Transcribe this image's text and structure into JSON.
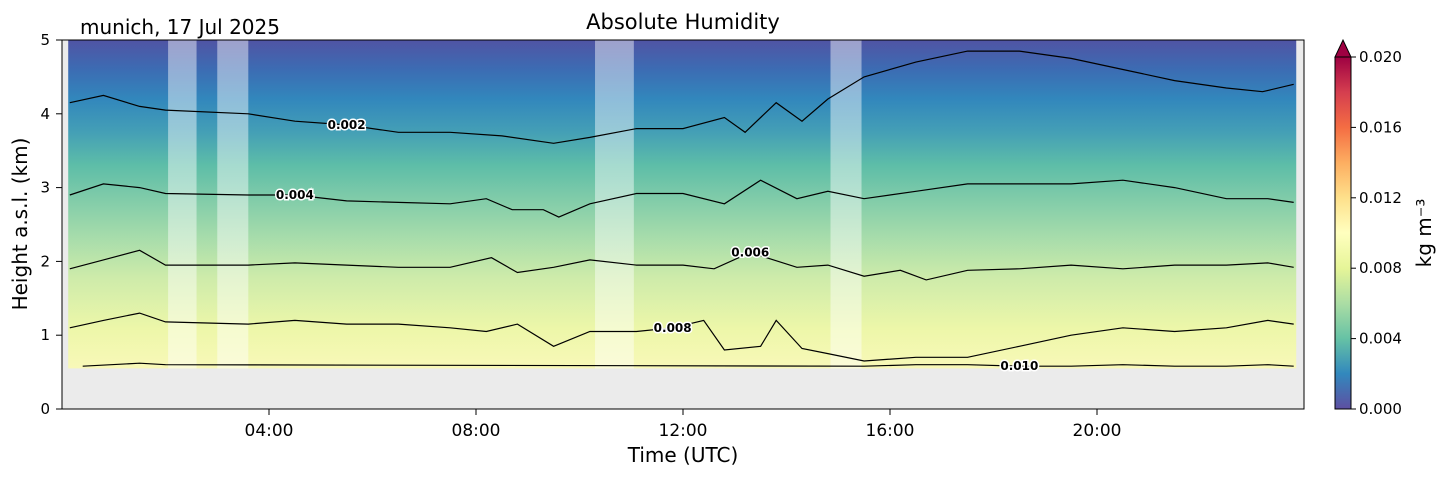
{
  "chart_data": {
    "type": "heatmap",
    "title": "Absolute Humidity",
    "subtitle": "munich, 17 Jul 2025",
    "xlabel": "Time (UTC)",
    "ylabel": "Height a.s.l. (km)",
    "xlim": [
      0,
      24
    ],
    "ylim": [
      0,
      5
    ],
    "x_ticks": [
      4,
      8,
      12,
      16,
      20
    ],
    "x_tick_labels": [
      "04:00",
      "08:00",
      "12:00",
      "16:00",
      "20:00"
    ],
    "y_ticks": [
      0,
      1,
      2,
      3,
      4,
      5
    ],
    "y_tick_labels": [
      "0",
      "1",
      "2",
      "3",
      "4",
      "5"
    ],
    "ground_height_km": 0.55,
    "data_start_hour": 0.12,
    "data_end_hour": 23.85,
    "gaps_hours": [
      [
        2.05,
        2.6
      ],
      [
        3.0,
        3.6
      ],
      [
        10.3,
        11.05
      ],
      [
        14.85,
        15.45
      ]
    ],
    "colorbar": {
      "label": "kg m⁻³",
      "min": 0.0,
      "max": 0.02,
      "ticks": [
        0.0,
        0.004,
        0.008,
        0.012,
        0.016,
        0.02
      ],
      "tick_labels": [
        "0.000",
        "0.004",
        "0.008",
        "0.012",
        "0.016",
        "0.020"
      ],
      "extend": "max",
      "colormap": "Spectral_r"
    },
    "contours": [
      {
        "level": 0.002,
        "label": "0.002",
        "label_hour": 5.8,
        "points": [
          [
            0.15,
            4.15
          ],
          [
            0.8,
            4.25
          ],
          [
            1.5,
            4.1
          ],
          [
            2.0,
            4.05
          ],
          [
            3.6,
            4.0
          ],
          [
            4.5,
            3.9
          ],
          [
            5.5,
            3.85
          ],
          [
            6.5,
            3.75
          ],
          [
            7.5,
            3.75
          ],
          [
            8.5,
            3.7
          ],
          [
            9.5,
            3.6
          ],
          [
            10.2,
            3.68
          ],
          [
            11.1,
            3.8
          ],
          [
            12.0,
            3.8
          ],
          [
            12.8,
            3.95
          ],
          [
            13.2,
            3.75
          ],
          [
            13.8,
            4.15
          ],
          [
            14.3,
            3.9
          ],
          [
            14.8,
            4.2
          ],
          [
            15.5,
            4.5
          ],
          [
            16.5,
            4.7
          ],
          [
            17.5,
            4.85
          ],
          [
            18.5,
            4.85
          ],
          [
            19.5,
            4.75
          ],
          [
            20.5,
            4.6
          ],
          [
            21.5,
            4.45
          ],
          [
            22.5,
            4.35
          ],
          [
            23.2,
            4.3
          ],
          [
            23.8,
            4.4
          ]
        ]
      },
      {
        "level": 0.004,
        "label": "0.004",
        "label_hour": 4.4,
        "points": [
          [
            0.15,
            2.9
          ],
          [
            0.8,
            3.05
          ],
          [
            1.5,
            3.0
          ],
          [
            2.0,
            2.92
          ],
          [
            3.6,
            2.9
          ],
          [
            4.5,
            2.9
          ],
          [
            5.5,
            2.82
          ],
          [
            6.5,
            2.8
          ],
          [
            7.5,
            2.78
          ],
          [
            8.2,
            2.85
          ],
          [
            8.7,
            2.7
          ],
          [
            9.3,
            2.7
          ],
          [
            9.6,
            2.6
          ],
          [
            10.2,
            2.78
          ],
          [
            11.1,
            2.92
          ],
          [
            12.0,
            2.92
          ],
          [
            12.8,
            2.78
          ],
          [
            13.5,
            3.1
          ],
          [
            14.2,
            2.85
          ],
          [
            14.8,
            2.95
          ],
          [
            15.5,
            2.85
          ],
          [
            16.5,
            2.95
          ],
          [
            17.5,
            3.05
          ],
          [
            18.5,
            3.05
          ],
          [
            19.5,
            3.05
          ],
          [
            20.5,
            3.1
          ],
          [
            21.5,
            3.0
          ],
          [
            22.5,
            2.85
          ],
          [
            23.3,
            2.85
          ],
          [
            23.8,
            2.8
          ]
        ]
      },
      {
        "level": 0.006,
        "label": "0.006",
        "label_hour": 13.2,
        "points": [
          [
            0.15,
            1.9
          ],
          [
            0.8,
            2.02
          ],
          [
            1.5,
            2.15
          ],
          [
            2.0,
            1.95
          ],
          [
            3.6,
            1.95
          ],
          [
            4.5,
            1.98
          ],
          [
            5.5,
            1.95
          ],
          [
            6.5,
            1.92
          ],
          [
            7.5,
            1.92
          ],
          [
            8.3,
            2.05
          ],
          [
            8.8,
            1.85
          ],
          [
            9.5,
            1.92
          ],
          [
            10.2,
            2.02
          ],
          [
            11.1,
            1.95
          ],
          [
            12.0,
            1.95
          ],
          [
            12.6,
            1.9
          ],
          [
            13.3,
            2.12
          ],
          [
            14.2,
            1.92
          ],
          [
            14.8,
            1.95
          ],
          [
            15.5,
            1.8
          ],
          [
            16.2,
            1.88
          ],
          [
            16.7,
            1.75
          ],
          [
            17.5,
            1.88
          ],
          [
            18.5,
            1.9
          ],
          [
            19.5,
            1.95
          ],
          [
            20.5,
            1.9
          ],
          [
            21.5,
            1.95
          ],
          [
            22.5,
            1.95
          ],
          [
            23.3,
            1.98
          ],
          [
            23.8,
            1.92
          ]
        ]
      },
      {
        "level": 0.008,
        "label": "0.008",
        "label_hour": 11.8,
        "points": [
          [
            0.15,
            1.1
          ],
          [
            0.8,
            1.2
          ],
          [
            1.5,
            1.3
          ],
          [
            2.0,
            1.18
          ],
          [
            3.6,
            1.15
          ],
          [
            4.5,
            1.2
          ],
          [
            5.5,
            1.15
          ],
          [
            6.5,
            1.15
          ],
          [
            7.5,
            1.1
          ],
          [
            8.2,
            1.05
          ],
          [
            8.8,
            1.15
          ],
          [
            9.5,
            0.85
          ],
          [
            10.2,
            1.05
          ],
          [
            11.1,
            1.05
          ],
          [
            11.8,
            1.1
          ],
          [
            12.4,
            1.2
          ],
          [
            12.8,
            0.8
          ],
          [
            13.5,
            0.85
          ],
          [
            13.8,
            1.2
          ],
          [
            14.3,
            0.82
          ],
          [
            14.8,
            0.75
          ],
          [
            15.5,
            0.65
          ],
          [
            16.5,
            0.7
          ],
          [
            17.5,
            0.7
          ],
          [
            18.5,
            0.85
          ],
          [
            19.5,
            1.0
          ],
          [
            20.5,
            1.1
          ],
          [
            21.5,
            1.05
          ],
          [
            22.5,
            1.1
          ],
          [
            23.3,
            1.2
          ],
          [
            23.8,
            1.15
          ]
        ]
      },
      {
        "level": 0.01,
        "label": "0.010",
        "label_hour": 18.5,
        "points": [
          [
            0.4,
            0.58
          ],
          [
            1.5,
            0.62
          ],
          [
            2.0,
            0.6
          ],
          [
            15.5,
            0.58
          ],
          [
            16.5,
            0.6
          ],
          [
            17.5,
            0.6
          ],
          [
            18.5,
            0.58
          ],
          [
            19.5,
            0.58
          ],
          [
            20.5,
            0.6
          ],
          [
            21.5,
            0.58
          ],
          [
            22.5,
            0.58
          ],
          [
            23.3,
            0.6
          ],
          [
            23.8,
            0.58
          ]
        ]
      }
    ]
  }
}
